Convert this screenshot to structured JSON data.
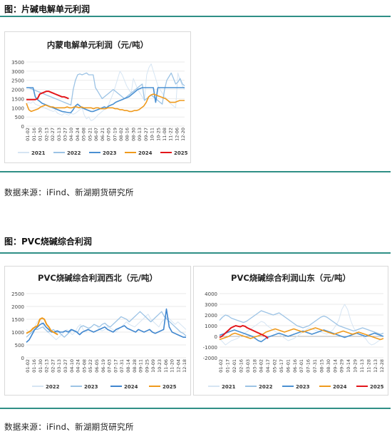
{
  "sections": [
    {
      "title": "图：片碱电解单元利润",
      "source": "数据来源：iFind、新湖期货研究所"
    },
    {
      "title": "图：PVC烧碱综合利润",
      "source": "数据来源：iFind、新湖期货研究所"
    }
  ],
  "chart_data": [
    {
      "type": "line",
      "title": "内蒙电解单元利润（元/吨）",
      "ylim": [
        0,
        3500
      ],
      "yticks": [
        "0",
        "500",
        "1000",
        "1500",
        "2000",
        "2500",
        "3000",
        "3500"
      ],
      "xticks": [
        "01-02",
        "01-16",
        "01-30",
        "02-13",
        "02-27",
        "03-13",
        "03-27",
        "04-10",
        "04-24",
        "05-08",
        "05-21",
        "06-07",
        "06-21",
        "07-05",
        "07-19",
        "08-02",
        "08-16",
        "08-30",
        "09-13",
        "09-27",
        "10-11",
        "10-25",
        "11-08",
        "11-22",
        "12-06",
        "12-20"
      ],
      "legend": "bottom",
      "series": [
        {
          "name": "2021",
          "color": "#d6e5f3",
          "width": 1,
          "values": [
            1200,
            1300,
            1250,
            1350,
            1200,
            1150,
            1100,
            1050,
            1000,
            950,
            900,
            850,
            800,
            850,
            700,
            650,
            600,
            700,
            650,
            600,
            700,
            650,
            700,
            800,
            900,
            1000,
            600,
            400,
            500,
            300,
            350,
            450,
            600,
            700,
            800,
            900,
            1000,
            1200,
            1500,
            1800,
            2200,
            2600,
            3000,
            2800,
            2500,
            2200,
            2000,
            1800,
            2600,
            2300,
            2000,
            1800,
            1600,
            1400,
            2800,
            3200,
            3400,
            3000,
            2600,
            2200,
            2000,
            1800,
            1600,
            1500,
            1300,
            1200,
            1100,
            1000,
            2900,
            2500,
            2200,
            2000
          ]
        },
        {
          "name": "2022",
          "color": "#9cc3e5",
          "width": 1.3,
          "values": [
            2100,
            2100,
            2050,
            2000,
            1950,
            1900,
            1850,
            1800,
            1750,
            1700,
            1650,
            1600,
            1550,
            1500,
            1450,
            1400,
            1350,
            1300,
            1250,
            1200,
            1150,
            2000,
            2500,
            2800,
            2850,
            2800,
            2850,
            2900,
            2800,
            2800,
            2800,
            2100,
            1900,
            1700,
            1500,
            1600,
            1700,
            1800,
            1900,
            2000,
            1900,
            1800,
            1700,
            1600,
            1500,
            1600,
            1700,
            1800,
            1900,
            2000,
            2100,
            2200,
            2300,
            1400,
            1500,
            1600,
            1700,
            1600,
            1500,
            1400,
            1300,
            1200,
            2000,
            2500,
            2700,
            2900,
            2600,
            2300,
            2400,
            2600,
            2300,
            2200
          ]
        },
        {
          "name": "2023",
          "color": "#4a90d2",
          "width": 1.6,
          "values": [
            2100,
            2100,
            2100,
            2100,
            1600,
            1450,
            1350,
            1250,
            1200,
            1150,
            1100,
            1050,
            1000,
            950,
            900,
            850,
            800,
            780,
            760,
            740,
            740,
            900,
            1100,
            1200,
            1100,
            1000,
            950,
            900,
            850,
            800,
            800,
            850,
            900,
            950,
            1000,
            1050,
            1000,
            1100,
            1150,
            1200,
            1300,
            1350,
            1400,
            1450,
            1500,
            1550,
            1600,
            1700,
            1800,
            1900,
            2000,
            2050,
            2100,
            2100,
            2100,
            2100,
            2100,
            2100,
            1300,
            2100,
            2100,
            2100,
            2100,
            2100,
            2100,
            2100,
            2100,
            2100,
            2100,
            2100,
            2100,
            2100
          ]
        },
        {
          "name": "2024",
          "color": "#ef9a1d",
          "width": 1.6,
          "values": [
            1250,
            900,
            800,
            850,
            900,
            950,
            1050,
            1100,
            1150,
            1100,
            1050,
            1050,
            1000,
            1000,
            1000,
            1000,
            1000,
            1050,
            1000,
            1000,
            1050,
            1050,
            1000,
            1050,
            1000,
            1000,
            1000,
            1000,
            950,
            1000,
            1000,
            950,
            950,
            950,
            1000,
            1000,
            1000,
            950,
            950,
            900,
            900,
            850,
            850,
            800,
            800,
            850,
            850,
            900,
            1000,
            1100,
            1300,
            1600,
            1700,
            1750,
            1700,
            1650,
            1600,
            1550,
            1500,
            1400,
            1300,
            1300,
            1300,
            1350,
            1400,
            1400,
            1400
          ]
        },
        {
          "name": "2025",
          "color": "#e3161b",
          "width": 2,
          "values": [
            1450,
            1450,
            1450,
            1450,
            1450,
            1500,
            1750,
            1800,
            1850,
            1900,
            1900,
            1850,
            1800,
            1750,
            1700,
            1650,
            1600,
            1600,
            1550,
            1500
          ]
        }
      ]
    },
    {
      "type": "line",
      "title": "PVC烧碱综合利润西北（元/吨）",
      "ylim": [
        0,
        2500
      ],
      "yticks": [
        "0",
        "500",
        "1000",
        "1500",
        "2000",
        "2500"
      ],
      "xticks": [
        "01-02",
        "01-16",
        "01-30",
        "02-13",
        "02-27",
        "03-13",
        "03-27",
        "04-10",
        "04-24",
        "05-08",
        "05-22",
        "06-05",
        "06-19",
        "07-03",
        "07-17",
        "07-31",
        "08-14",
        "08-28",
        "09-11",
        "09-25",
        "10-09",
        "10-23",
        "11-06",
        "11-20",
        "12-04",
        "12-18"
      ],
      "legend": "bottom",
      "series": [
        {
          "name": "2022",
          "color": "#d6e5f3",
          "width": 1,
          "values": [
            1100,
            1000,
            900,
            1200,
            1400,
            1500,
            1300,
            1100,
            1000,
            900,
            800,
            700,
            800,
            900,
            1000,
            1100,
            1000,
            900,
            1000,
            1200,
            1300,
            1100,
            1000,
            1100,
            1200,
            1300,
            1250,
            1100,
            1050,
            1100,
            1200,
            1150,
            1100,
            1000,
            1100,
            1200,
            1300,
            1400,
            1300,
            1250,
            1200,
            1300,
            1400,
            1500,
            1600,
            1700,
            1500,
            1400,
            1300,
            1200,
            1400,
            1500,
            1600,
            1500,
            1400,
            1300,
            1400,
            1300,
            1200,
            1100
          ]
        },
        {
          "name": "2023",
          "color": "#9cc3e5",
          "width": 1.3,
          "values": [
            800,
            900,
            1000,
            1100,
            1100,
            1150,
            1200,
            1100,
            1000,
            1050,
            1100,
            1000,
            1000,
            900,
            800,
            900,
            1000,
            1100,
            1050,
            1000,
            1200,
            1250,
            1200,
            1150,
            1200,
            1300,
            1250,
            1200,
            1300,
            1350,
            1250,
            1200,
            1300,
            1400,
            1500,
            1600,
            1550,
            1500,
            1400,
            1500,
            1600,
            1700,
            1800,
            1700,
            1600,
            1500,
            1400,
            1500,
            1600,
            1700,
            1800,
            1600,
            1500,
            1400,
            1300,
            1200,
            1100,
            1000,
            950,
            850
          ]
        },
        {
          "name": "2024",
          "color": "#3f86cf",
          "width": 1.6,
          "values": [
            600,
            700,
            900,
            1100,
            1200,
            1300,
            1350,
            1200,
            1100,
            1000,
            1000,
            1050,
            1000,
            1000,
            1050,
            1000,
            1100,
            1050,
            1000,
            900,
            1000,
            1050,
            1100,
            1050,
            1000,
            1050,
            1100,
            1150,
            1200,
            1100,
            1050,
            1000,
            1100,
            1150,
            1200,
            1250,
            1150,
            1100,
            1050,
            1000,
            1100,
            1050,
            1000,
            1050,
            1100,
            1000,
            950,
            1000,
            1050,
            1100,
            1900,
            1200,
            1000,
            950,
            900,
            850,
            800,
            800
          ]
        },
        {
          "name": "2025",
          "color": "#ef9a1d",
          "width": 2,
          "values": [
            950,
            1000,
            1050,
            1150,
            1200,
            1250,
            1500,
            1550,
            1500,
            1300,
            1200,
            1050,
            1000,
            950,
            900
          ]
        }
      ]
    },
    {
      "type": "line",
      "title": "PVC烧碱综合利润山东（元/吨）",
      "ylim": [
        -2000,
        4000
      ],
      "yticks": [
        "-2000",
        "-1000",
        "0",
        "1000",
        "2000",
        "3000",
        "4000"
      ],
      "xticks": [
        "01-02",
        "01-17",
        "02-01",
        "02-16",
        "03-03",
        "03-18",
        "04-02",
        "04-17",
        "05-02",
        "05-17",
        "06-01",
        "06-16",
        "07-01",
        "07-16",
        "07-31",
        "08-15",
        "08-30",
        "09-14",
        "09-29",
        "10-14",
        "10-29",
        "11-13",
        "11-28",
        "12-13",
        "12-28"
      ],
      "legend": "bottom",
      "series": [
        {
          "name": "2021",
          "color": "#d6e5f3",
          "width": 1,
          "values": [
            -200,
            -500,
            -800,
            -600,
            -400,
            -300,
            -200,
            0,
            200,
            400,
            600,
            800,
            1000,
            1200,
            1400,
            1300,
            1000,
            800,
            600,
            400,
            200,
            0,
            -200,
            -400,
            -300,
            -200,
            0,
            200,
            400,
            600,
            800,
            700,
            600,
            500,
            400,
            300,
            200,
            400,
            600,
            1000,
            1500,
            2500,
            3000,
            2500,
            1500,
            800,
            400,
            200,
            0,
            -200,
            -600,
            -800,
            -700,
            -500,
            -300,
            -200
          ]
        },
        {
          "name": "2022",
          "color": "#9cc3e5",
          "width": 1.3,
          "values": [
            1500,
            1800,
            2000,
            1900,
            1700,
            1600,
            1500,
            1400,
            1300,
            1400,
            1600,
            1800,
            2000,
            2200,
            2400,
            2300,
            2200,
            2100,
            2000,
            2100,
            2200,
            2000,
            1800,
            1600,
            1400,
            1200,
            1000,
            900,
            800,
            900,
            1000,
            1200,
            1400,
            1600,
            1800,
            1900,
            1800,
            1600,
            1400,
            1200,
            1000,
            900,
            800,
            700,
            600,
            500,
            600,
            700,
            800,
            700,
            600,
            500,
            400,
            300,
            200,
            300
          ]
        },
        {
          "name": "2023",
          "color": "#4a90d2",
          "width": 1.6,
          "values": [
            100,
            200,
            300,
            400,
            500,
            600,
            500,
            400,
            300,
            200,
            100,
            0,
            -200,
            -400,
            -500,
            -300,
            -100,
            0,
            100,
            200,
            300,
            200,
            100,
            0,
            100,
            200,
            300,
            400,
            500,
            400,
            300,
            200,
            300,
            400,
            500,
            600,
            500,
            400,
            300,
            200,
            100,
            0,
            -100,
            0,
            100,
            200,
            300,
            200,
            100,
            0,
            100,
            200,
            300,
            200,
            100,
            0
          ]
        },
        {
          "name": "2024",
          "color": "#ef9a1d",
          "width": 1.6,
          "values": [
            -300,
            -200,
            -100,
            0,
            200,
            300,
            200,
            100,
            0,
            -100,
            -200,
            -100,
            0,
            100,
            200,
            400,
            500,
            600,
            700,
            600,
            500,
            400,
            500,
            600,
            700,
            600,
            500,
            400,
            500,
            600,
            700,
            800,
            700,
            600,
            500,
            400,
            300,
            200,
            300,
            400,
            500,
            400,
            300,
            200,
            300,
            400,
            300,
            200,
            100,
            0,
            -100,
            -200,
            -300,
            -200
          ]
        },
        {
          "name": "2025",
          "color": "#e3161b",
          "width": 2,
          "values": [
            -100,
            0,
            200,
            400,
            600,
            800,
            900,
            1000,
            950,
            900,
            1000,
            950,
            800,
            700,
            600,
            500,
            400,
            300,
            200,
            100,
            0,
            -200
          ]
        }
      ]
    }
  ]
}
